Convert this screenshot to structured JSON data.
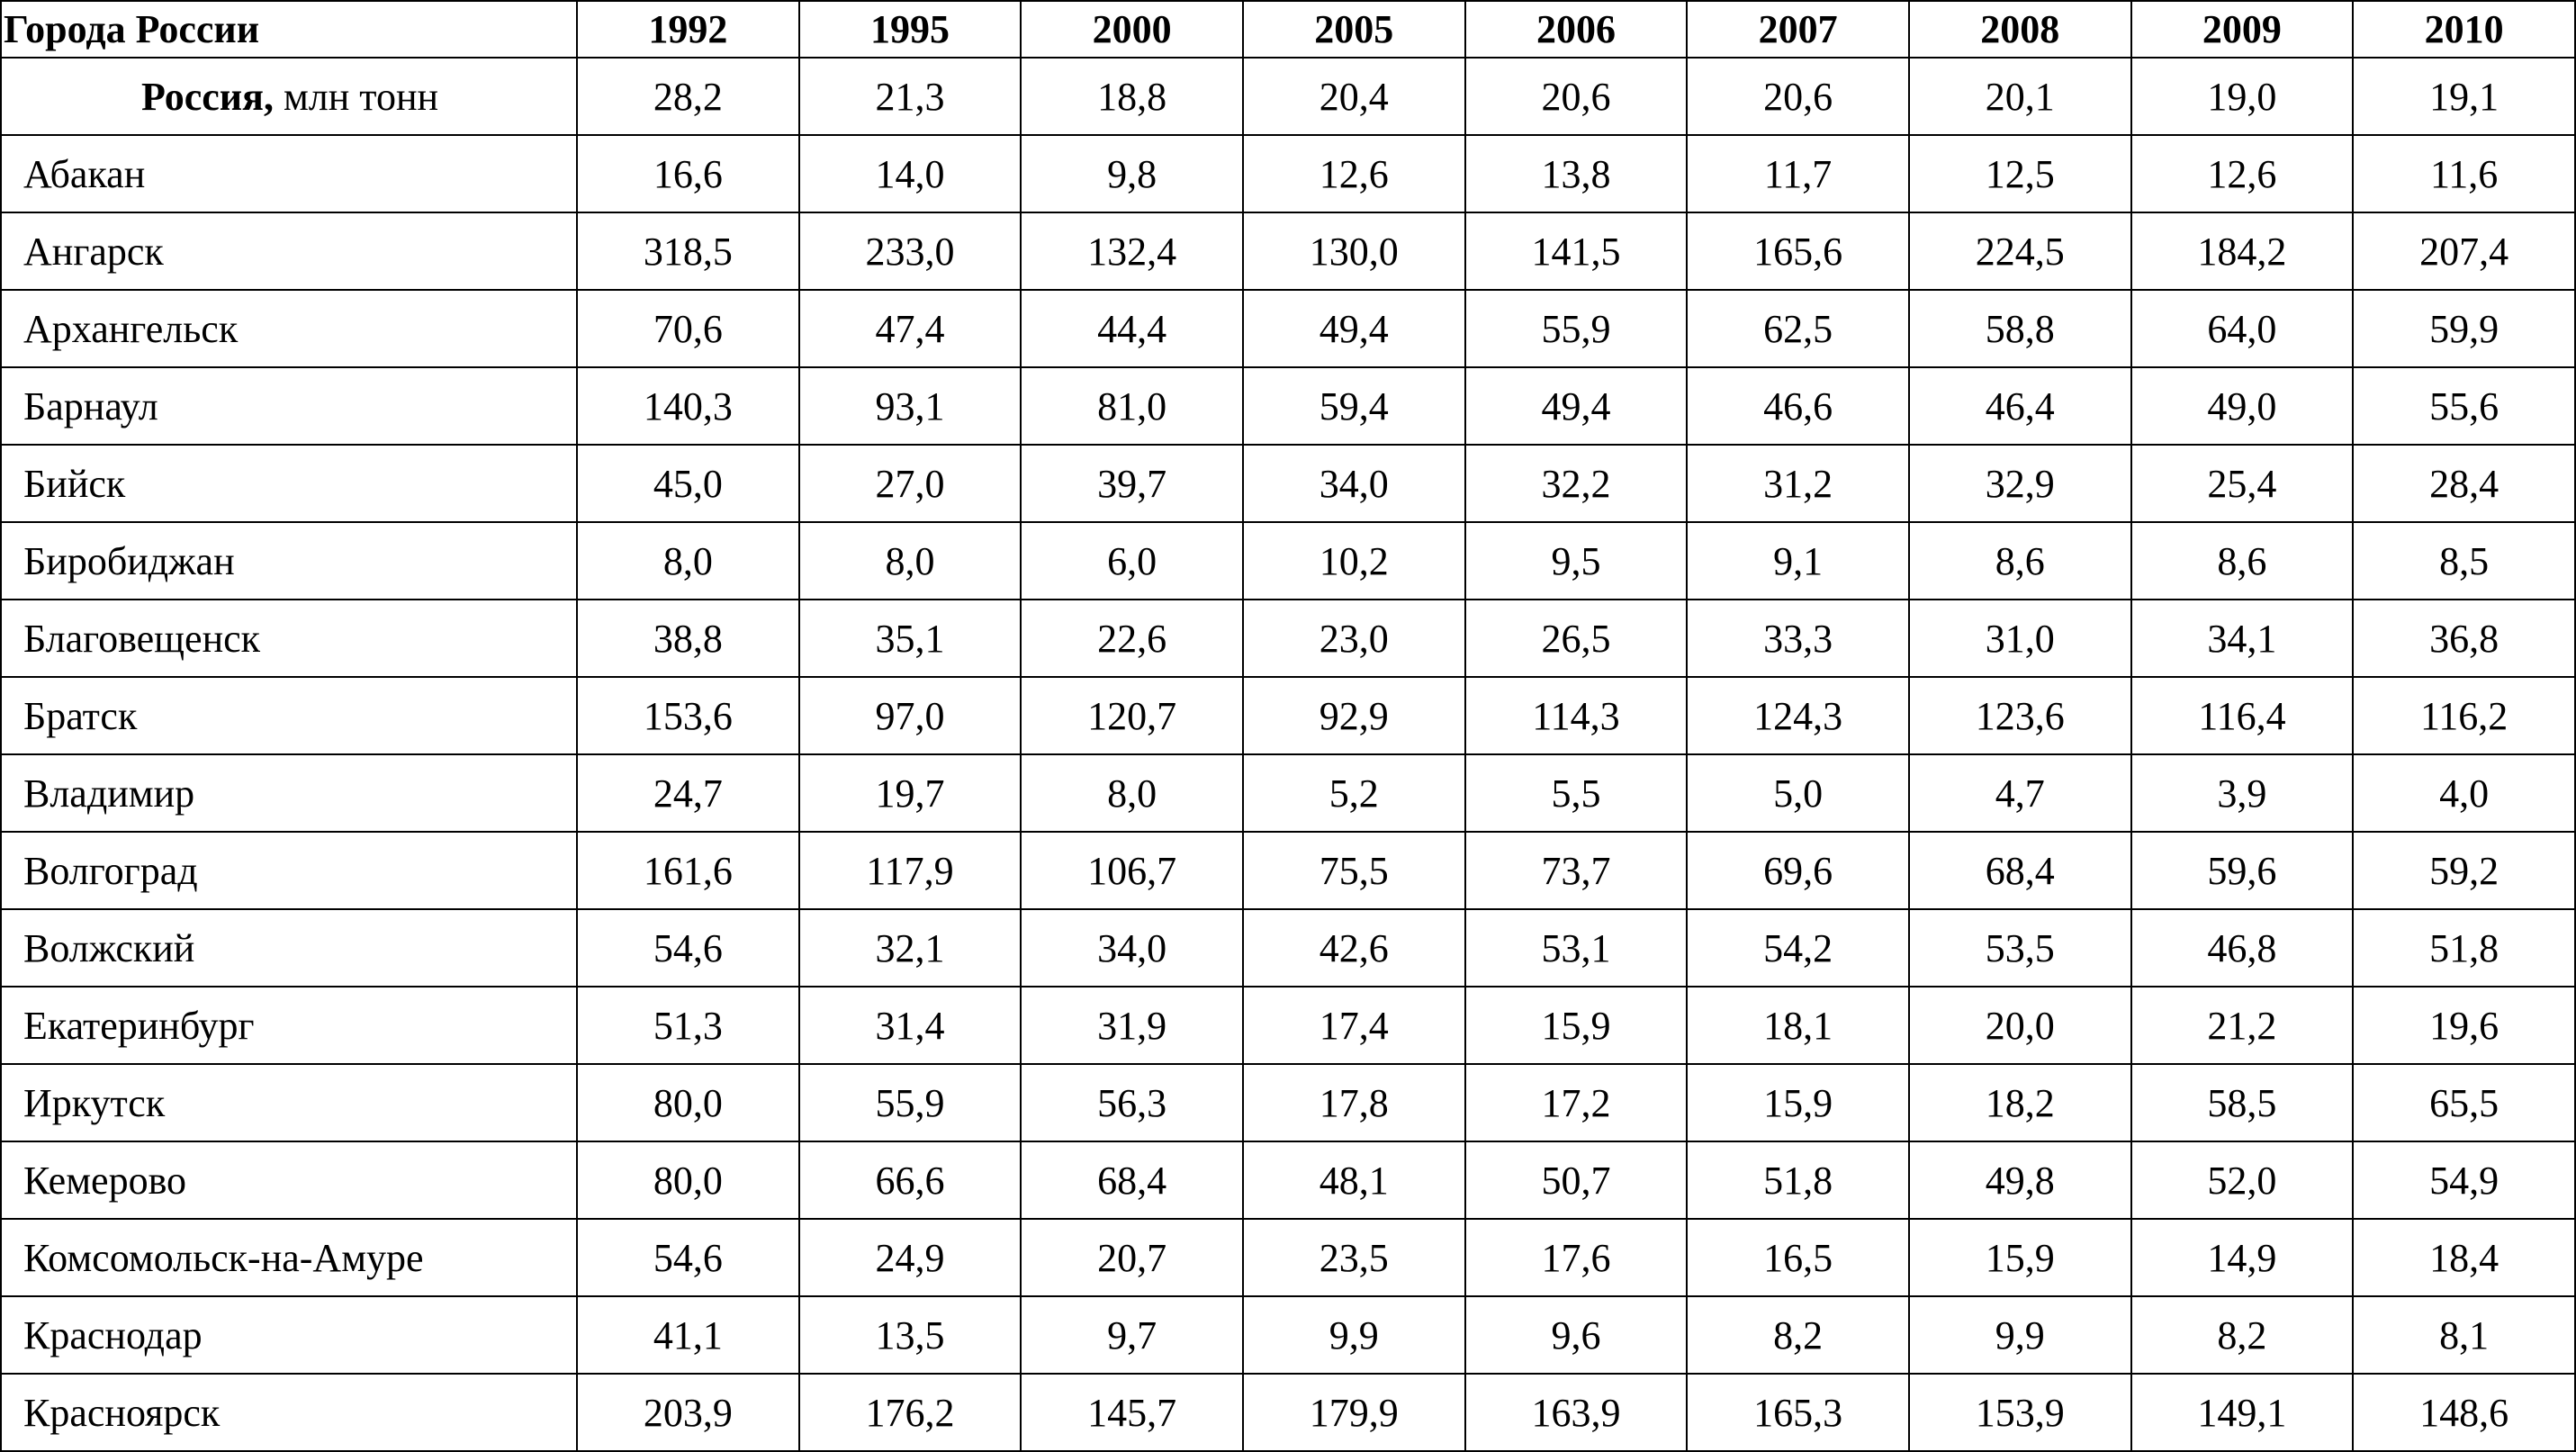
{
  "table": {
    "header": [
      "Города России",
      "1992",
      "1995",
      "2000",
      "2005",
      "2006",
      "2007",
      "2008",
      "2009",
      "2010"
    ],
    "total": {
      "label": "Россия,",
      "unit": "млн тонн",
      "values": [
        "28,2",
        "21,3",
        "18,8",
        "20,4",
        "20,6",
        "20,6",
        "20,1",
        "19,0",
        "19,1"
      ]
    },
    "rows": [
      [
        "Абакан",
        "16,6",
        "14,0",
        "9,8",
        "12,6",
        "13,8",
        "11,7",
        "12,5",
        "12,6",
        "11,6"
      ],
      [
        "Ангарск",
        "318,5",
        "233,0",
        "132,4",
        "130,0",
        "141,5",
        "165,6",
        "224,5",
        "184,2",
        "207,4"
      ],
      [
        "Архангельск",
        "70,6",
        "47,4",
        "44,4",
        "49,4",
        "55,9",
        "62,5",
        "58,8",
        "64,0",
        "59,9"
      ],
      [
        "Барнаул",
        "140,3",
        "93,1",
        "81,0",
        "59,4",
        "49,4",
        "46,6",
        "46,4",
        "49,0",
        "55,6"
      ],
      [
        "Бийск",
        "45,0",
        "27,0",
        "39,7",
        "34,0",
        "32,2",
        "31,2",
        "32,9",
        "25,4",
        "28,4"
      ],
      [
        "Биробиджан",
        "8,0",
        "8,0",
        "6,0",
        "10,2",
        "9,5",
        "9,1",
        "8,6",
        "8,6",
        "8,5"
      ],
      [
        "Благовещенск",
        "38,8",
        "35,1",
        "22,6",
        "23,0",
        "26,5",
        "33,3",
        "31,0",
        "34,1",
        "36,8"
      ],
      [
        "Братск",
        "153,6",
        "97,0",
        "120,7",
        "92,9",
        "114,3",
        "124,3",
        "123,6",
        "116,4",
        "116,2"
      ],
      [
        "Владимир",
        "24,7",
        "19,7",
        "8,0",
        "5,2",
        "5,5",
        "5,0",
        "4,7",
        "3,9",
        "4,0"
      ],
      [
        "Волгоград",
        "161,6",
        "117,9",
        "106,7",
        "75,5",
        "73,7",
        "69,6",
        "68,4",
        "59,6",
        "59,2"
      ],
      [
        "Волжский",
        "54,6",
        "32,1",
        "34,0",
        "42,6",
        "53,1",
        "54,2",
        "53,5",
        "46,8",
        "51,8"
      ],
      [
        "Екатеринбург",
        "51,3",
        "31,4",
        "31,9",
        "17,4",
        "15,9",
        "18,1",
        "20,0",
        "21,2",
        "19,6"
      ],
      [
        "Иркутск",
        "80,0",
        "55,9",
        "56,3",
        "17,8",
        "17,2",
        "15,9",
        "18,2",
        "58,5",
        "65,5"
      ],
      [
        "Кемерово",
        "80,0",
        "66,6",
        "68,4",
        "48,1",
        "50,7",
        "51,8",
        "49,8",
        "52,0",
        "54,9"
      ],
      [
        "Комсомольск-на-Амуре",
        "54,6",
        "24,9",
        "20,7",
        "23,5",
        "17,6",
        "16,5",
        "15,9",
        "14,9",
        "18,4"
      ],
      [
        "Краснодар",
        "41,1",
        "13,5",
        "9,7",
        "9,9",
        "9,6",
        "8,2",
        "9,9",
        "8,2",
        "8,1"
      ],
      [
        "Красноярск",
        "203,9",
        "176,2",
        "145,7",
        "179,9",
        "163,9",
        "165,3",
        "153,9",
        "149,1",
        "148,6"
      ]
    ]
  }
}
